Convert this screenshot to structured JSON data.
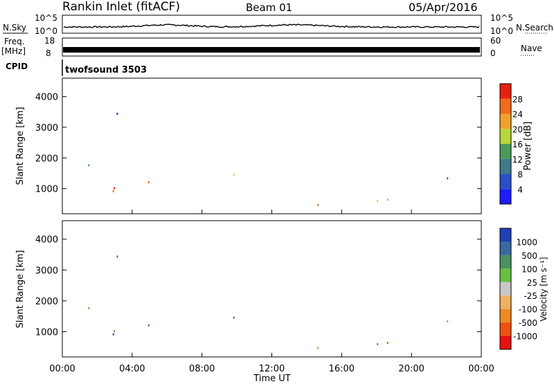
{
  "header": {
    "site": "Rankin Inlet (fitACF)",
    "beam": "Beam 01",
    "date": "05/Apr/2016"
  },
  "top_panels": {
    "nsky_label": "N.Sky",
    "nsearch_label": "N.Search",
    "nsky_ticks": [
      "10^5",
      "10^0"
    ],
    "nsearch_ticks": [
      "10^5",
      "10^0"
    ],
    "freq_label": "Freq.",
    "freq_unit": "[MHz]",
    "freq_ticks": [
      "18",
      "8"
    ],
    "nave_label": "Nave",
    "nave_ticks": [
      "60",
      "0"
    ],
    "cpid_label": "CPID",
    "cpid_value": "twofsound 3503"
  },
  "chart_data": [
    {
      "type": "heatmap",
      "ylabel": "Slant Range [km]",
      "xlabel": "",
      "y_ticks": [
        "1000",
        "2000",
        "3000",
        "4000"
      ],
      "x_ticks": [],
      "ylim": [
        180,
        4600
      ],
      "xlim_hours": [
        0,
        24
      ],
      "colorbar": {
        "label": "Power [dB]",
        "ticks": [
          "4",
          "8",
          "12",
          "16",
          "20",
          "24",
          "28"
        ],
        "colors": [
          "#1c1cff",
          "#2a4fc8",
          "#3e7a8c",
          "#4a9b5a",
          "#b8d83a",
          "#f2a02a",
          "#f26a1a",
          "#e82010"
        ]
      }
    },
    {
      "type": "heatmap",
      "ylabel": "Slant Range [km]",
      "xlabel": "Time UT",
      "y_ticks": [
        "1000",
        "2000",
        "3000",
        "4000"
      ],
      "x_ticks": [
        "00:00",
        "04:00",
        "08:00",
        "12:00",
        "16:00",
        "20:00",
        "00:00"
      ],
      "ylim": [
        180,
        4600
      ],
      "xlim_hours": [
        0,
        24
      ],
      "colorbar": {
        "label": "Velocity [m s⁻¹]",
        "ticks": [
          "1000",
          "500",
          "100",
          "25",
          "-25",
          "-100",
          "-500",
          "-1000"
        ],
        "colors": [
          "#2040b8",
          "#3a6aa0",
          "#4a9060",
          "#66c040",
          "#c8c8c8",
          "#f0b060",
          "#f08a20",
          "#f05010",
          "#e81010"
        ]
      }
    }
  ]
}
